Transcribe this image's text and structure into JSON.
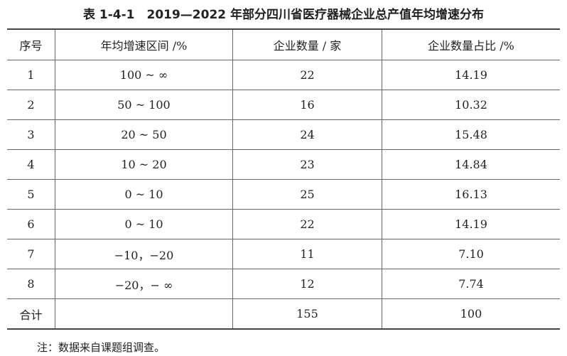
{
  "title": "表 1-4-1　2019—2022 年部分四川省医疗器械企业总产值年均增速分布",
  "headers": [
    "序号",
    "年均增速区间 /%",
    "企业数量 / 家",
    "企业数量占比 /%"
  ],
  "rows": [
    [
      "1",
      "100 ~ ∞",
      "22",
      "14.19"
    ],
    [
      "2",
      "50 ~ 100",
      "16",
      "10.32"
    ],
    [
      "3",
      "20 ~ 50",
      "24",
      "15.48"
    ],
    [
      "4",
      "10 ~ 20",
      "23",
      "14.84"
    ],
    [
      "5",
      "0 ~ 10",
      "25",
      "16.13"
    ],
    [
      "6",
      "0 ~ 10",
      "22",
      "14.19"
    ],
    [
      "7",
      "−10，−20",
      "11",
      "7.10"
    ],
    [
      "8",
      "−20，− ∞",
      "12",
      "7.74"
    ],
    [
      "合计",
      "",
      "155",
      "100"
    ]
  ],
  "note": "注：数据来自课题组调查。"
}
